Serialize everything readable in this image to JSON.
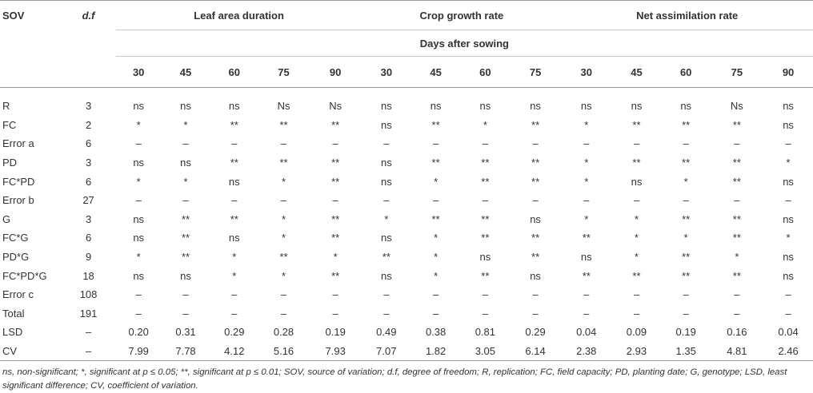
{
  "headers": {
    "sov": "SOV",
    "df": "d.f",
    "groups": [
      "Leaf area duration",
      "Crop growth rate",
      "Net assimilation rate"
    ],
    "days_label": "Days after sowing",
    "days": [
      "30",
      "45",
      "60",
      "75",
      "90",
      "30",
      "45",
      "60",
      "75",
      "30",
      "45",
      "60",
      "75",
      "90"
    ]
  },
  "rows": [
    {
      "sov": "R",
      "df": "3",
      "v": [
        "ns",
        "ns",
        "ns",
        "Ns",
        "Ns",
        "ns",
        "ns",
        "ns",
        "ns",
        "ns",
        "ns",
        "ns",
        "Ns",
        "ns"
      ]
    },
    {
      "sov": "FC",
      "df": "2",
      "v": [
        "*",
        "*",
        "**",
        "**",
        "**",
        "ns",
        "**",
        "*",
        "**",
        "*",
        "**",
        "**",
        "**",
        "ns"
      ]
    },
    {
      "sov": "Error a",
      "df": "6",
      "v": [
        "–",
        "–",
        "–",
        "–",
        "–",
        "–",
        "–",
        "–",
        "–",
        "–",
        "–",
        "–",
        "–",
        "–"
      ]
    },
    {
      "sov": "PD",
      "df": "3",
      "v": [
        "ns",
        "ns",
        "**",
        "**",
        "**",
        "ns",
        "**",
        "**",
        "**",
        "*",
        "**",
        "**",
        "**",
        "*"
      ]
    },
    {
      "sov": "FC*PD",
      "df": "6",
      "v": [
        "*",
        "*",
        "ns",
        "*",
        "**",
        "ns",
        "*",
        "**",
        "**",
        "*",
        "ns",
        "*",
        "**",
        "ns"
      ]
    },
    {
      "sov": "Error b",
      "df": "27",
      "v": [
        "–",
        "–",
        "–",
        "–",
        "–",
        "–",
        "–",
        "–",
        "–",
        "–",
        "–",
        "–",
        "–",
        "–"
      ]
    },
    {
      "sov": "G",
      "df": "3",
      "v": [
        "ns",
        "**",
        "**",
        "*",
        "**",
        "*",
        "**",
        "**",
        "ns",
        "*",
        "*",
        "**",
        "**",
        "ns"
      ]
    },
    {
      "sov": "FC*G",
      "df": "6",
      "v": [
        "ns",
        "**",
        "ns",
        "*",
        "**",
        "ns",
        "*",
        "**",
        "**",
        "**",
        "*",
        "*",
        "**",
        "*"
      ]
    },
    {
      "sov": "PD*G",
      "df": "9",
      "v": [
        "*",
        "**",
        "*",
        "**",
        "*",
        "**",
        "*",
        "ns",
        "**",
        "ns",
        "*",
        "**",
        "*",
        "ns"
      ]
    },
    {
      "sov": "FC*PD*G",
      "df": "18",
      "v": [
        "ns",
        "ns",
        "*",
        "*",
        "**",
        "ns",
        "*",
        "**",
        "ns",
        "**",
        "**",
        "**",
        "**",
        "ns"
      ]
    },
    {
      "sov": "Error c",
      "df": "108",
      "v": [
        "–",
        "–",
        "–",
        "–",
        "–",
        "–",
        "–",
        "–",
        "–",
        "–",
        "–",
        "–",
        "–",
        "–"
      ]
    },
    {
      "sov": "Total",
      "df": "191",
      "v": [
        "–",
        "–",
        "–",
        "–",
        "–",
        "–",
        "–",
        "–",
        "–",
        "–",
        "–",
        "–",
        "–",
        "–"
      ]
    },
    {
      "sov": "LSD",
      "df": "–",
      "v": [
        "0.20",
        "0.31",
        "0.29",
        "0.28",
        "0.19",
        "0.49",
        "0.38",
        "0.81",
        "0.29",
        "0.04",
        "0.09",
        "0.19",
        "0.16",
        "0.04"
      ]
    },
    {
      "sov": "CV",
      "df": "–",
      "v": [
        "7.99",
        "7.78",
        "4.12",
        "5.16",
        "7.93",
        "7.07",
        "1.82",
        "3.05",
        "6.14",
        "2.38",
        "2.93",
        "1.35",
        "4.81",
        "2.46"
      ]
    }
  ],
  "footnote": "ns, non-significant; *, significant at p ≤ 0.05; **, significant at p ≤ 0.01; SOV, source of variation; d.f, degree of freedom; R, replication; FC, field capacity; PD, planting date; G, genotype; LSD, least significant difference; CV, coefficient of variation."
}
